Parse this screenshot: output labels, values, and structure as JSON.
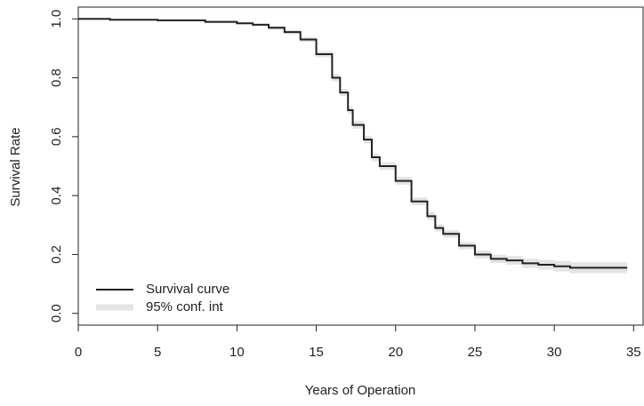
{
  "chart_data": {
    "type": "line",
    "step": true,
    "xlabel": "Years of Operation",
    "ylabel": "Survival Rate",
    "x": [
      0,
      2,
      5,
      8,
      10,
      11,
      12,
      13,
      14,
      15,
      16,
      16.5,
      17,
      17.3,
      18,
      18.5,
      19,
      20,
      21,
      22,
      22.5,
      23,
      24,
      25,
      26,
      27,
      28,
      29,
      30,
      31,
      34.6
    ],
    "series": [
      {
        "name": "Survival curve",
        "color": "#222222",
        "values": [
          1,
          0.997,
          0.995,
          0.99,
          0.985,
          0.98,
          0.97,
          0.955,
          0.93,
          0.88,
          0.8,
          0.75,
          0.69,
          0.64,
          0.59,
          0.53,
          0.5,
          0.45,
          0.38,
          0.33,
          0.29,
          0.27,
          0.23,
          0.2,
          0.185,
          0.18,
          0.17,
          0.165,
          0.16,
          0.155,
          0.155
        ]
      },
      {
        "name": "95% conf. int",
        "color": "#e4e4e4",
        "lower": [
          1,
          0.995,
          0.992,
          0.986,
          0.981,
          0.975,
          0.964,
          0.948,
          0.922,
          0.87,
          0.788,
          0.738,
          0.677,
          0.627,
          0.577,
          0.517,
          0.487,
          0.437,
          0.367,
          0.317,
          0.278,
          0.258,
          0.218,
          0.187,
          0.171,
          0.165,
          0.154,
          0.148,
          0.142,
          0.136,
          0.135
        ],
        "upper": [
          1,
          0.999,
          0.998,
          0.994,
          0.989,
          0.985,
          0.976,
          0.962,
          0.938,
          0.89,
          0.812,
          0.762,
          0.703,
          0.653,
          0.603,
          0.543,
          0.513,
          0.463,
          0.393,
          0.343,
          0.302,
          0.282,
          0.242,
          0.213,
          0.199,
          0.195,
          0.186,
          0.182,
          0.178,
          0.174,
          0.175
        ]
      }
    ],
    "xlim": [
      0,
      35.6
    ],
    "ylim": [
      -0.04,
      1.04
    ],
    "xticks": [
      0,
      5,
      10,
      15,
      20,
      25,
      30,
      35
    ],
    "yticks": [
      {
        "value": 0,
        "label": "0.0"
      },
      0.2,
      0.4,
      0.6,
      0.8,
      {
        "value": 1,
        "label": "1.0"
      }
    ],
    "legend": "bottom-left"
  }
}
